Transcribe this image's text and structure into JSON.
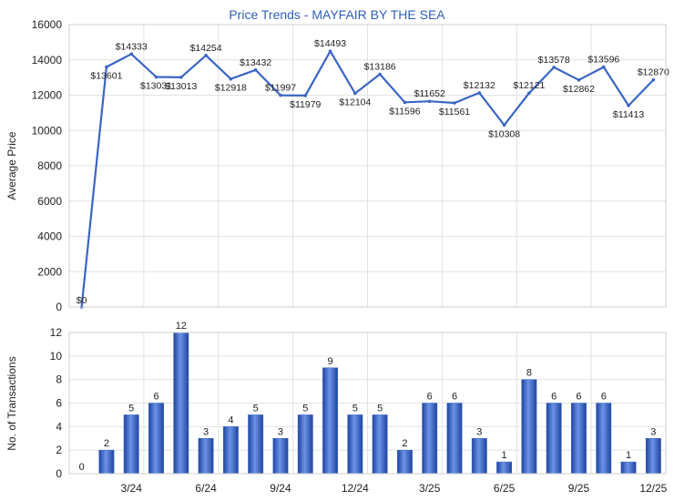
{
  "chart_data": [
    {
      "type": "line",
      "title": "Price Trends - MAYFAIR BY THE SEA",
      "ylabel": "Average Price",
      "ylim": [
        0,
        16000
      ],
      "yticks": [
        "0",
        "2000",
        "4000",
        "6000",
        "8000",
        "10000",
        "12000",
        "14000",
        "16000"
      ],
      "grid": true,
      "line_color": "#3a66c4",
      "series": [
        {
          "values": [
            0,
            13601,
            14333,
            13031,
            13013,
            14254,
            12918,
            13432,
            11997,
            11979,
            14493,
            12104,
            13186,
            11596,
            11652,
            11561,
            12132,
            10308,
            12121,
            13578,
            12862,
            13596,
            11413,
            12870
          ],
          "labels": [
            "$0",
            "$13601",
            "$14333",
            "$13031",
            "$13013",
            "$14254",
            "$12918",
            "$13432",
            "$11997",
            "$11979",
            "$14493",
            "$12104",
            "$13186",
            "$11596",
            "$11652",
            "$11561",
            "$12132",
            "$10308",
            "$12121",
            "$13578",
            "$12862",
            "$13596",
            "$11413",
            "$12870"
          ]
        }
      ]
    },
    {
      "type": "bar",
      "ylabel": "No. of Transactions",
      "ylim": [
        0,
        12
      ],
      "yticks": [
        "0",
        "2",
        "4",
        "6",
        "8",
        "10",
        "12"
      ],
      "x_tick_labels": [
        "3/24",
        "6/24",
        "9/24",
        "12/24",
        "3/25",
        "6/25",
        "9/25",
        "12/25"
      ],
      "grid": true,
      "bar_color": "#3a66c4",
      "values": [
        0,
        2,
        5,
        6,
        12,
        3,
        4,
        5,
        3,
        5,
        9,
        5,
        5,
        2,
        6,
        6,
        3,
        1,
        8,
        6,
        6,
        6,
        1,
        3
      ],
      "labels": [
        "0",
        "2",
        "5",
        "6",
        "12",
        "3",
        "4",
        "5",
        "3",
        "5",
        "9",
        "5",
        "5",
        "2",
        "6",
        "6",
        "3",
        "1",
        "8",
        "6",
        "6",
        "6",
        "1",
        "3"
      ]
    }
  ]
}
